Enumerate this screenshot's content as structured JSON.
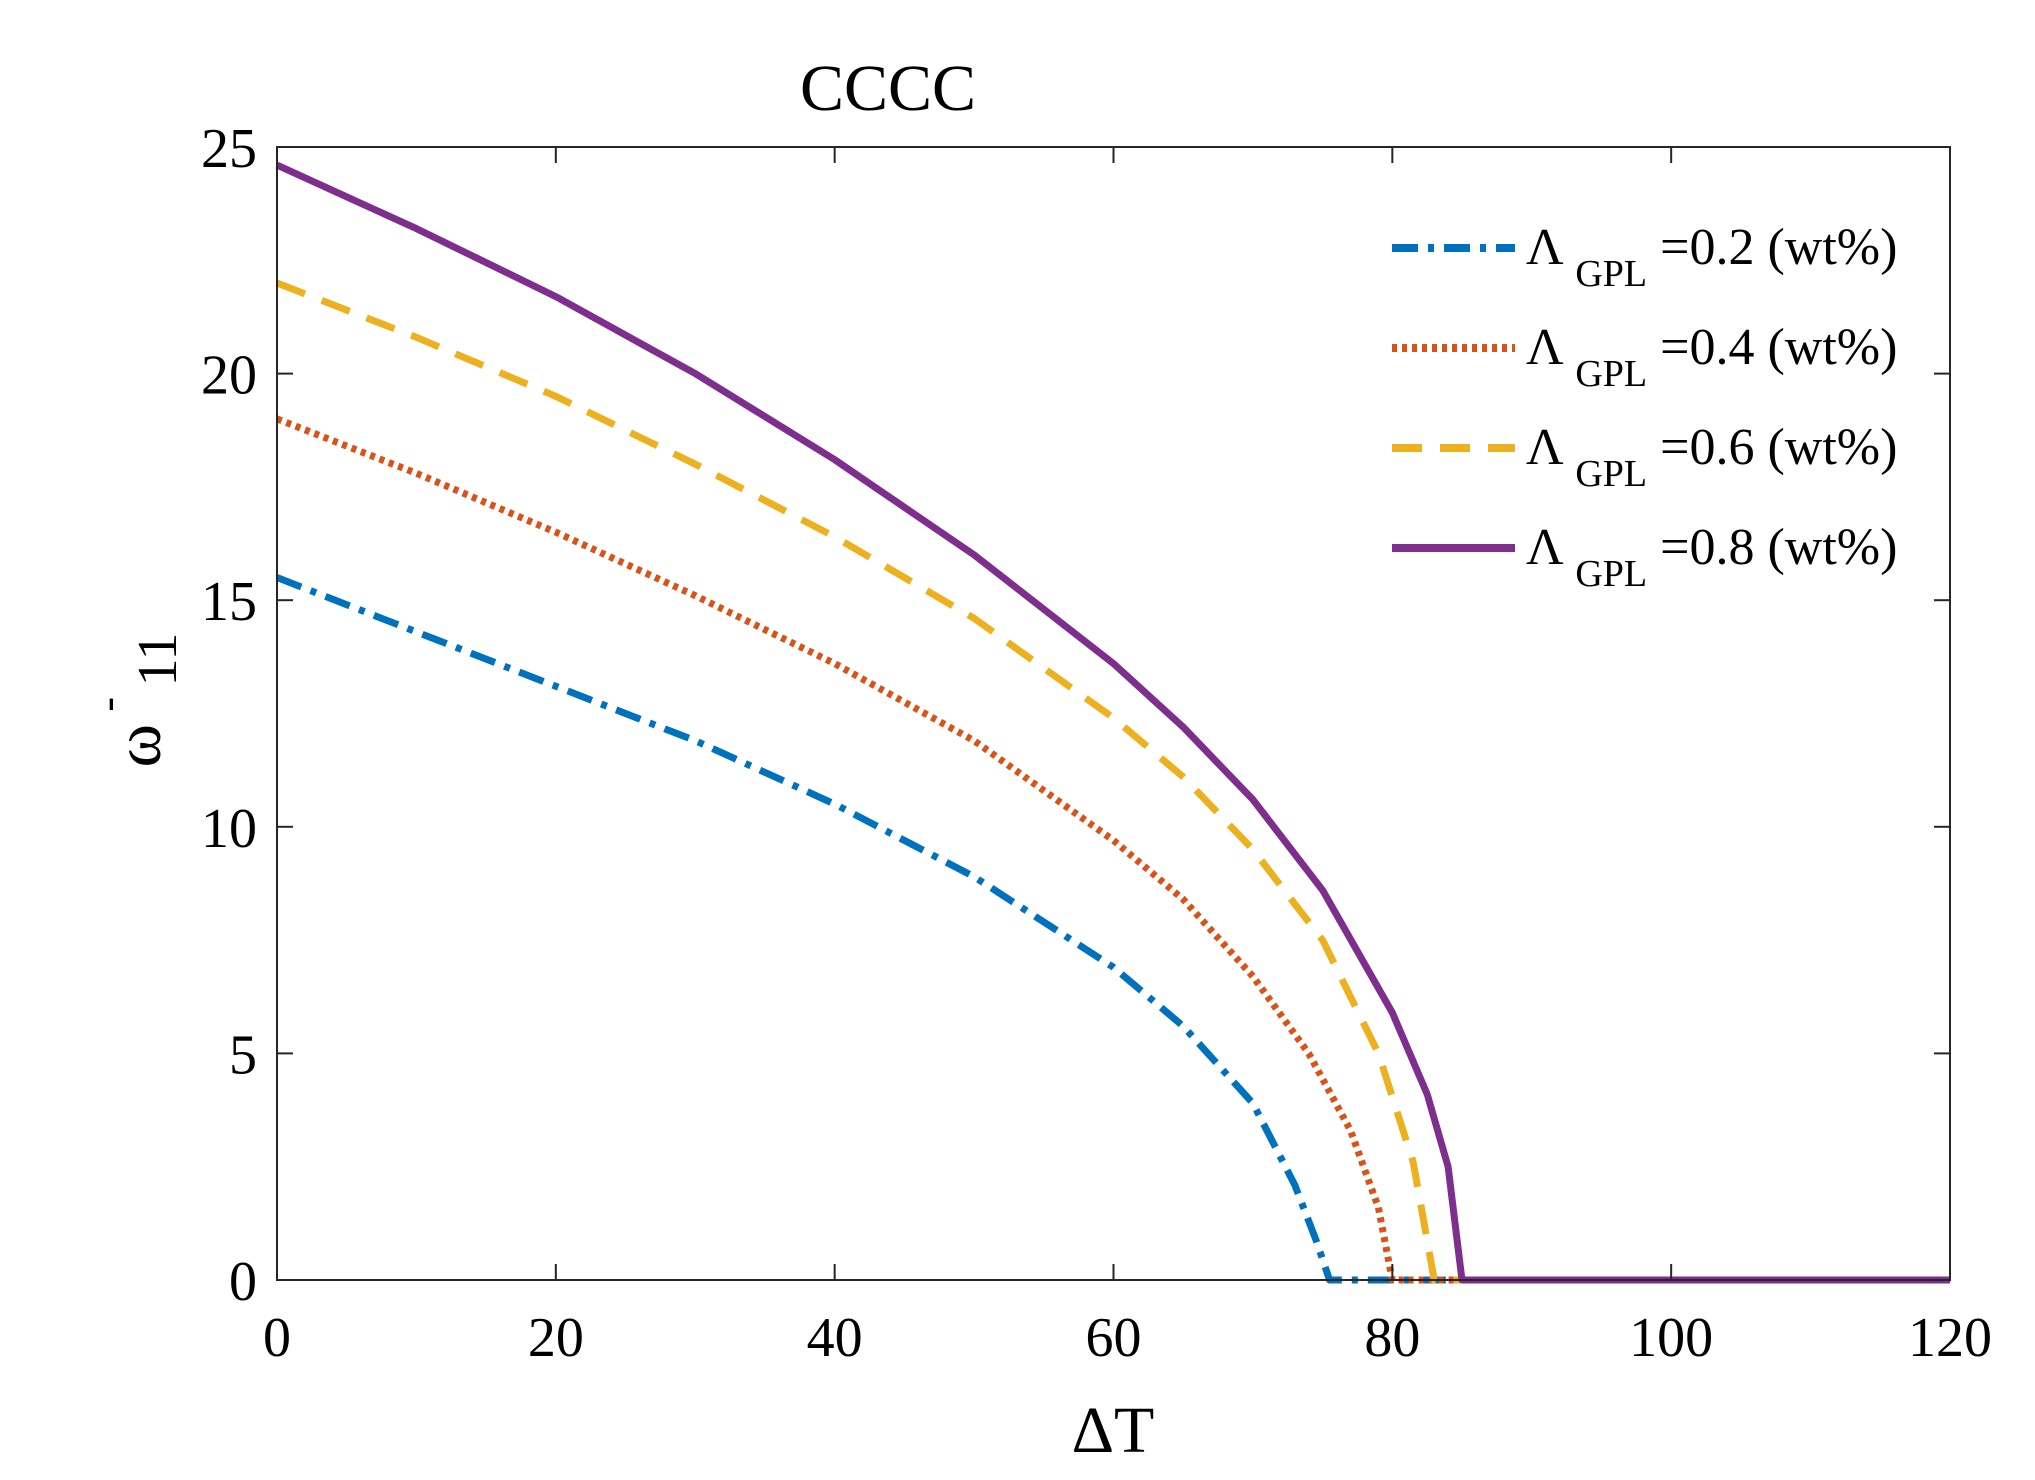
{
  "chart_data": {
    "type": "line",
    "title": "CCCC",
    "xlabel": "ΔT",
    "ylabel": {
      "main": "ω",
      "bar": "-",
      "sub": "11"
    },
    "xlim": [
      0,
      120
    ],
    "ylim": [
      0,
      25
    ],
    "xticks": [
      "0",
      "20",
      "40",
      "60",
      "80",
      "100",
      "120"
    ],
    "yticks": [
      "0",
      "5",
      "10",
      "15",
      "20",
      "25"
    ],
    "legend_position": "top-right",
    "series": [
      {
        "name": "ΛGPL=0.2 (wt%)",
        "label_main": "Λ",
        "label_sub": "GPL",
        "label_rest": "=0.2 (wt%)",
        "color": "#0072BD",
        "style": "dashdot",
        "x": [
          0,
          10,
          20,
          30,
          40,
          50,
          60,
          65,
          70,
          73,
          74.5,
          75.5,
          120
        ],
        "y": [
          15.5,
          14.3,
          13.1,
          11.9,
          10.5,
          8.9,
          6.9,
          5.6,
          3.9,
          2.1,
          0.9,
          0,
          0
        ]
      },
      {
        "name": "ΛGPL=0.4 (wt%)",
        "label_main": "Λ",
        "label_sub": "GPL",
        "label_rest": "=0.4 (wt%)",
        "color": "#D95319",
        "style": "dotted",
        "x": [
          0,
          10,
          20,
          30,
          40,
          50,
          60,
          65,
          70,
          74,
          77,
          79,
          80,
          120
        ],
        "y": [
          19.0,
          17.8,
          16.5,
          15.1,
          13.6,
          11.9,
          9.7,
          8.4,
          6.7,
          5.0,
          3.3,
          1.6,
          0,
          0
        ]
      },
      {
        "name": "ΛGPL=0.6 (wt%)",
        "label_main": "Λ",
        "label_sub": "GPL",
        "label_rest": "=0.6 (wt%)",
        "color": "#EDB120",
        "style": "dashed",
        "x": [
          0,
          10,
          20,
          30,
          40,
          50,
          60,
          65,
          70,
          75,
          79,
          81.5,
          83,
          120
        ],
        "y": [
          22.0,
          20.8,
          19.5,
          18.0,
          16.4,
          14.6,
          12.4,
          11.1,
          9.5,
          7.5,
          5.0,
          2.6,
          0,
          0
        ]
      },
      {
        "name": "ΛGPL=0.8 (wt%)",
        "label_main": "Λ",
        "label_sub": "GPL",
        "label_rest": "=0.8 (wt%)",
        "color": "#7E2F8E",
        "style": "solid",
        "x": [
          0,
          10,
          20,
          30,
          40,
          50,
          60,
          65,
          70,
          75,
          80,
          82.5,
          84,
          85,
          120
        ],
        "y": [
          24.6,
          23.2,
          21.7,
          20.0,
          18.1,
          16.0,
          13.6,
          12.2,
          10.6,
          8.6,
          5.9,
          4.1,
          2.5,
          0,
          0
        ]
      }
    ]
  }
}
